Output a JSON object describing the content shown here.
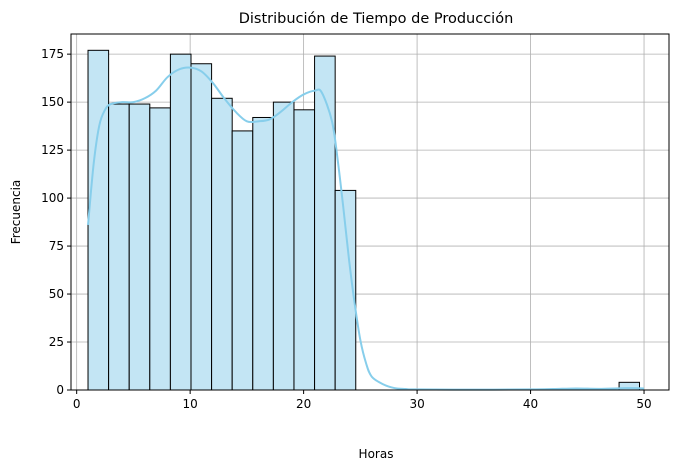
{
  "chart_data": {
    "type": "bar",
    "title": "Distribución de Tiempo de Producción",
    "xlabel": "Horas",
    "ylabel": "Frecuencia",
    "xlim": [
      -0.5,
      52.2
    ],
    "ylim": [
      0,
      185.5
    ],
    "xticks": [
      0,
      10,
      20,
      30,
      40,
      50
    ],
    "yticks": [
      0,
      25,
      50,
      75,
      100,
      125,
      150,
      175
    ],
    "grid": true,
    "bin_edges": [
      1.0,
      2.815,
      4.63,
      6.445,
      8.26,
      10.075,
      11.89,
      13.705,
      15.52,
      17.335,
      19.15,
      20.965,
      22.78,
      24.595
    ],
    "values": [
      177,
      149,
      149,
      147,
      175,
      170,
      152,
      135,
      142,
      150,
      146,
      174,
      104
    ],
    "outlier_bins": [
      {
        "x0": 47.8,
        "x1": 49.6,
        "value": 4
      }
    ],
    "kde_curve": {
      "x": [
        1.0,
        1.5,
        2.0,
        2.5,
        3.0,
        4.0,
        5.0,
        6.0,
        7.0,
        8.0,
        9.0,
        10.0,
        11.0,
        12.0,
        13.0,
        14.0,
        15.0,
        16.0,
        17.0,
        18.0,
        19.0,
        20.0,
        21.0,
        21.6,
        22.5,
        23.0,
        23.5,
        24.0,
        24.5,
        25.0,
        25.5,
        26.0,
        27.0,
        28.0,
        29.0,
        30.0,
        35.0,
        40.0,
        42.0,
        44.0,
        46.0,
        48.0,
        49.0,
        50.0
      ],
      "y": [
        86,
        118,
        138,
        146,
        149,
        150,
        150,
        152,
        156,
        163,
        167,
        168,
        166,
        160,
        152,
        145,
        140,
        140,
        141,
        145,
        150,
        154,
        156,
        155,
        140,
        120,
        95,
        68,
        45,
        26,
        14,
        7,
        3,
        1,
        0.5,
        0.3,
        0.2,
        0.3,
        0.5,
        0.8,
        0.6,
        0.9,
        1.0,
        0.8
      ]
    },
    "colors": {
      "bar_fill": "#c3e5f4",
      "bar_edge": "#000000",
      "kde_line": "#87ceeb",
      "grid": "#b0b0b0"
    }
  }
}
